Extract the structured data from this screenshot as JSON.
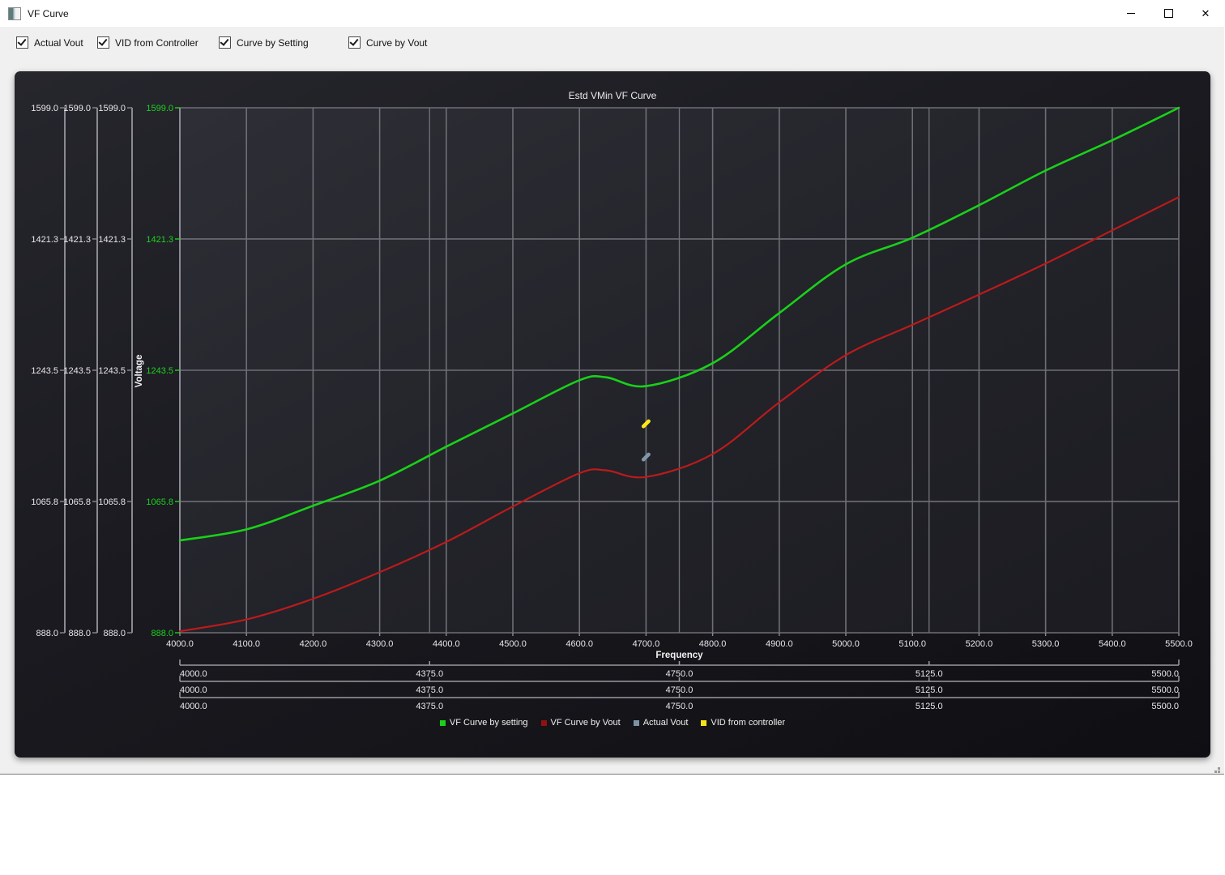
{
  "window": {
    "title": "VF Curve",
    "controls": {
      "minimize": "minimize",
      "maximize": "maximize",
      "close": "✕"
    }
  },
  "toolbar": {
    "checkboxes": [
      {
        "label": "Actual Vout",
        "checked": true
      },
      {
        "label": "VID from Controller",
        "checked": true
      },
      {
        "label": "Curve by Setting",
        "checked": true
      },
      {
        "label": "Curve by Vout",
        "checked": true
      }
    ]
  },
  "chart_data": {
    "type": "line",
    "title": "Estd VMin VF Curve",
    "xlabel": "Frequency",
    "ylabel": "Voltage",
    "xlim": [
      4000,
      5500
    ],
    "ylim": [
      888.0,
      1599.0
    ],
    "grid": true,
    "legend_position": "bottom",
    "x_ticks": [
      4000,
      4100,
      4200,
      4300,
      4400,
      4500,
      4600,
      4700,
      4800,
      4900,
      5000,
      5100,
      5200,
      5300,
      5400,
      5500
    ],
    "y_ticks": [
      1599.0,
      1421.3,
      1243.5,
      1065.8,
      888.0
    ],
    "extra_x_gridlines": [
      4375,
      4750,
      5125
    ],
    "duplicate_y_axes": 3,
    "series": [
      {
        "name": "VF Curve by setting",
        "type": "line",
        "color": "#19d119",
        "x": [
          4000,
          4100,
          4200,
          4300,
          4400,
          4500,
          4600,
          4640,
          4700,
          4800,
          4900,
          5000,
          5100,
          5200,
          5300,
          5400,
          5500
        ],
        "y": [
          1013,
          1028,
          1060,
          1094,
          1140,
          1185,
          1230,
          1234,
          1222,
          1253,
          1321,
          1387,
          1423,
          1467,
          1514,
          1555,
          1599
        ]
      },
      {
        "name": "VF Curve by Vout",
        "type": "line",
        "color": "#bb1b1b",
        "x": [
          4000,
          4100,
          4200,
          4300,
          4400,
          4500,
          4600,
          4640,
          4700,
          4800,
          4900,
          5000,
          5100,
          5200,
          5300,
          5400,
          5500
        ],
        "y": [
          890,
          906,
          934,
          970,
          1011,
          1059,
          1104,
          1108,
          1099,
          1130,
          1200,
          1264,
          1305,
          1346,
          1388,
          1433,
          1478
        ]
      },
      {
        "name": "Actual Vout",
        "type": "marker",
        "color": "#7f97a6",
        "x": [
          4700
        ],
        "y": [
          1126
        ]
      },
      {
        "name": "VID from controller",
        "type": "marker",
        "color": "#ffe81a",
        "x": [
          4700
        ],
        "y": [
          1171
        ]
      }
    ],
    "secondary_x_scales": [
      {
        "ticks": [
          4000.0,
          4375.0,
          4750.0,
          5125.0,
          5500.0
        ]
      },
      {
        "ticks": [
          4000.0,
          4375.0,
          4750.0,
          5125.0,
          5500.0
        ]
      },
      {
        "ticks": [
          4000.0,
          4375.0,
          4750.0,
          5125.0,
          5500.0
        ]
      }
    ],
    "legend": [
      {
        "label": "VF Curve by setting",
        "color": "#19d119"
      },
      {
        "label": "VF Curve by Vout",
        "color": "#8f1212"
      },
      {
        "label": "Actual Vout",
        "color": "#7d93a3"
      },
      {
        "label": "VID from controller",
        "color": "#f5e216"
      }
    ],
    "colors": {
      "axis_text": "#e8e8ea",
      "green_axis_text": "#1fd11f",
      "gridline": "#6e6e76",
      "axis_line": "#8a8a92",
      "plot_bg_top": "#2e2e36",
      "plot_bg_bottom": "#1b1b21"
    }
  }
}
